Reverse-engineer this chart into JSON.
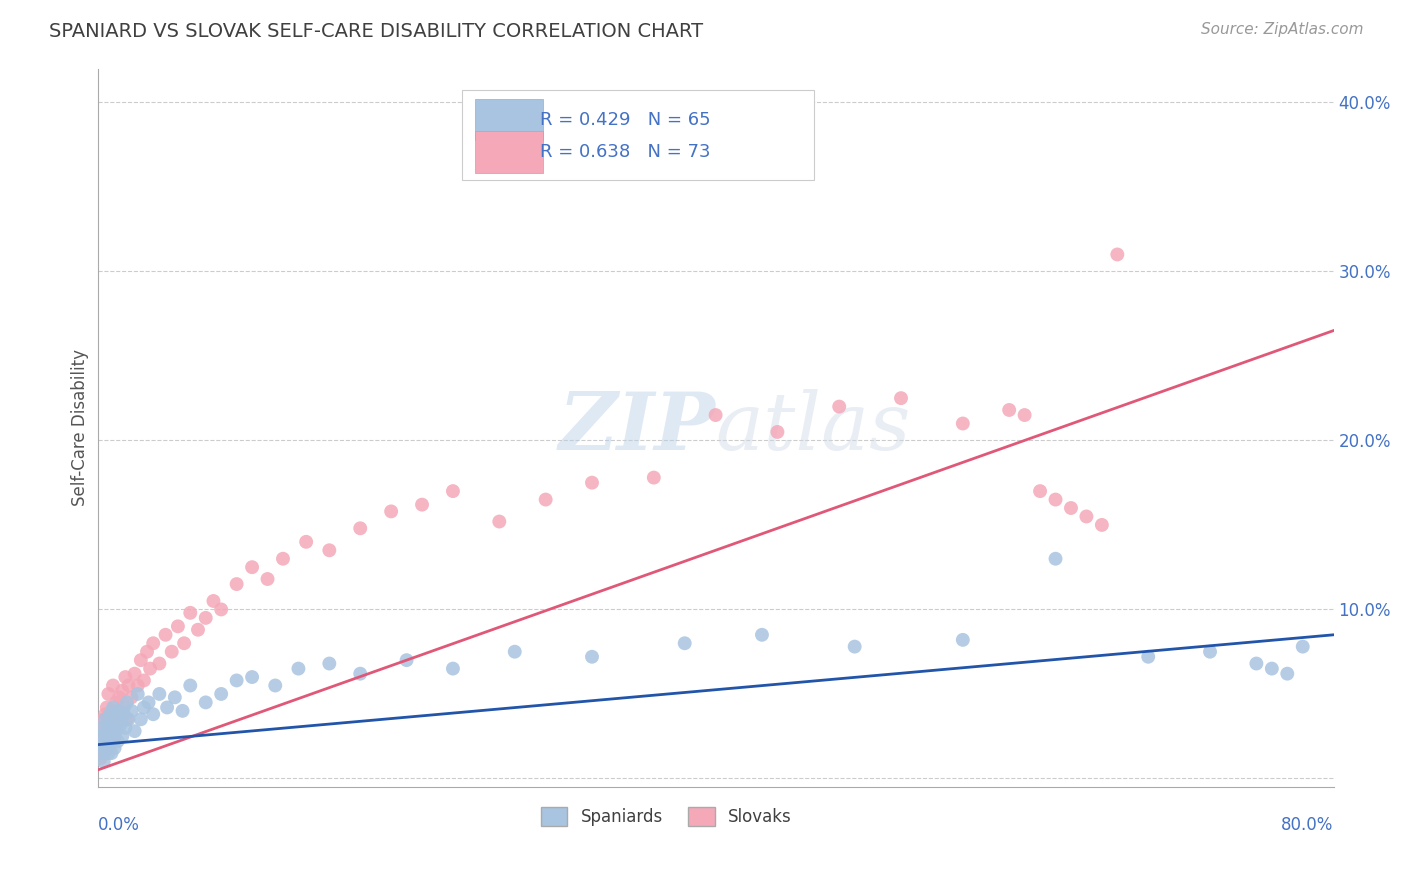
{
  "title": "SPANIARD VS SLOVAK SELF-CARE DISABILITY CORRELATION CHART",
  "source": "Source: ZipAtlas.com",
  "ylabel": "Self-Care Disability",
  "xlim": [
    0.0,
    0.8
  ],
  "ylim": [
    -0.005,
    0.42
  ],
  "spaniards_R": 0.429,
  "spaniards_N": 65,
  "slovaks_R": 0.638,
  "slovaks_N": 73,
  "spaniard_color": "#a8c4e0",
  "slovak_color": "#f4a8b8",
  "spaniard_line_color": "#2255aa",
  "slovak_line_color": "#e05878",
  "legend_spaniard_label": "Spaniards",
  "legend_slovak_label": "Slovaks",
  "background_color": "#ffffff",
  "grid_color": "#cccccc",
  "title_color": "#404040",
  "axis_label_color": "#4472c4",
  "watermark": "ZIPatlas",
  "sp_line_x0": 0.0,
  "sp_line_y0": 0.02,
  "sp_line_x1": 0.8,
  "sp_line_y1": 0.085,
  "sk_line_x0": 0.0,
  "sk_line_y0": 0.005,
  "sk_line_x1": 0.8,
  "sk_line_y1": 0.265,
  "spaniards_x": [
    0.001,
    0.002,
    0.002,
    0.003,
    0.003,
    0.004,
    0.004,
    0.005,
    0.005,
    0.006,
    0.006,
    0.007,
    0.007,
    0.008,
    0.008,
    0.009,
    0.009,
    0.01,
    0.01,
    0.011,
    0.011,
    0.012,
    0.013,
    0.014,
    0.015,
    0.016,
    0.017,
    0.018,
    0.019,
    0.02,
    0.022,
    0.024,
    0.026,
    0.028,
    0.03,
    0.033,
    0.036,
    0.04,
    0.045,
    0.05,
    0.055,
    0.06,
    0.07,
    0.08,
    0.09,
    0.1,
    0.115,
    0.13,
    0.15,
    0.17,
    0.2,
    0.23,
    0.27,
    0.32,
    0.38,
    0.43,
    0.49,
    0.56,
    0.62,
    0.68,
    0.72,
    0.75,
    0.76,
    0.77,
    0.78
  ],
  "spaniards_y": [
    0.02,
    0.015,
    0.025,
    0.018,
    0.03,
    0.01,
    0.022,
    0.025,
    0.035,
    0.018,
    0.028,
    0.015,
    0.032,
    0.02,
    0.038,
    0.025,
    0.015,
    0.03,
    0.042,
    0.018,
    0.035,
    0.028,
    0.022,
    0.04,
    0.032,
    0.025,
    0.038,
    0.03,
    0.045,
    0.035,
    0.04,
    0.028,
    0.05,
    0.035,
    0.042,
    0.045,
    0.038,
    0.05,
    0.042,
    0.048,
    0.04,
    0.055,
    0.045,
    0.05,
    0.058,
    0.06,
    0.055,
    0.065,
    0.068,
    0.062,
    0.07,
    0.065,
    0.075,
    0.072,
    0.08,
    0.085,
    0.078,
    0.082,
    0.13,
    0.072,
    0.075,
    0.068,
    0.065,
    0.062,
    0.078
  ],
  "slovaks_x": [
    0.001,
    0.002,
    0.002,
    0.003,
    0.003,
    0.004,
    0.004,
    0.005,
    0.005,
    0.006,
    0.006,
    0.007,
    0.007,
    0.008,
    0.008,
    0.009,
    0.01,
    0.01,
    0.011,
    0.012,
    0.013,
    0.014,
    0.015,
    0.016,
    0.017,
    0.018,
    0.019,
    0.02,
    0.022,
    0.024,
    0.026,
    0.028,
    0.03,
    0.032,
    0.034,
    0.036,
    0.04,
    0.044,
    0.048,
    0.052,
    0.056,
    0.06,
    0.065,
    0.07,
    0.075,
    0.08,
    0.09,
    0.1,
    0.11,
    0.12,
    0.135,
    0.15,
    0.17,
    0.19,
    0.21,
    0.23,
    0.26,
    0.29,
    0.32,
    0.36,
    0.4,
    0.44,
    0.48,
    0.52,
    0.56,
    0.59,
    0.6,
    0.61,
    0.62,
    0.63,
    0.64,
    0.65,
    0.66
  ],
  "slovaks_y": [
    0.018,
    0.025,
    0.012,
    0.03,
    0.02,
    0.035,
    0.015,
    0.028,
    0.038,
    0.022,
    0.042,
    0.018,
    0.05,
    0.025,
    0.035,
    0.03,
    0.04,
    0.055,
    0.025,
    0.045,
    0.032,
    0.048,
    0.038,
    0.052,
    0.042,
    0.06,
    0.035,
    0.055,
    0.048,
    0.062,
    0.055,
    0.07,
    0.058,
    0.075,
    0.065,
    0.08,
    0.068,
    0.085,
    0.075,
    0.09,
    0.08,
    0.098,
    0.088,
    0.095,
    0.105,
    0.1,
    0.115,
    0.125,
    0.118,
    0.13,
    0.14,
    0.135,
    0.148,
    0.158,
    0.162,
    0.17,
    0.152,
    0.165,
    0.175,
    0.178,
    0.215,
    0.205,
    0.22,
    0.225,
    0.21,
    0.218,
    0.215,
    0.17,
    0.165,
    0.16,
    0.155,
    0.15,
    0.31
  ]
}
